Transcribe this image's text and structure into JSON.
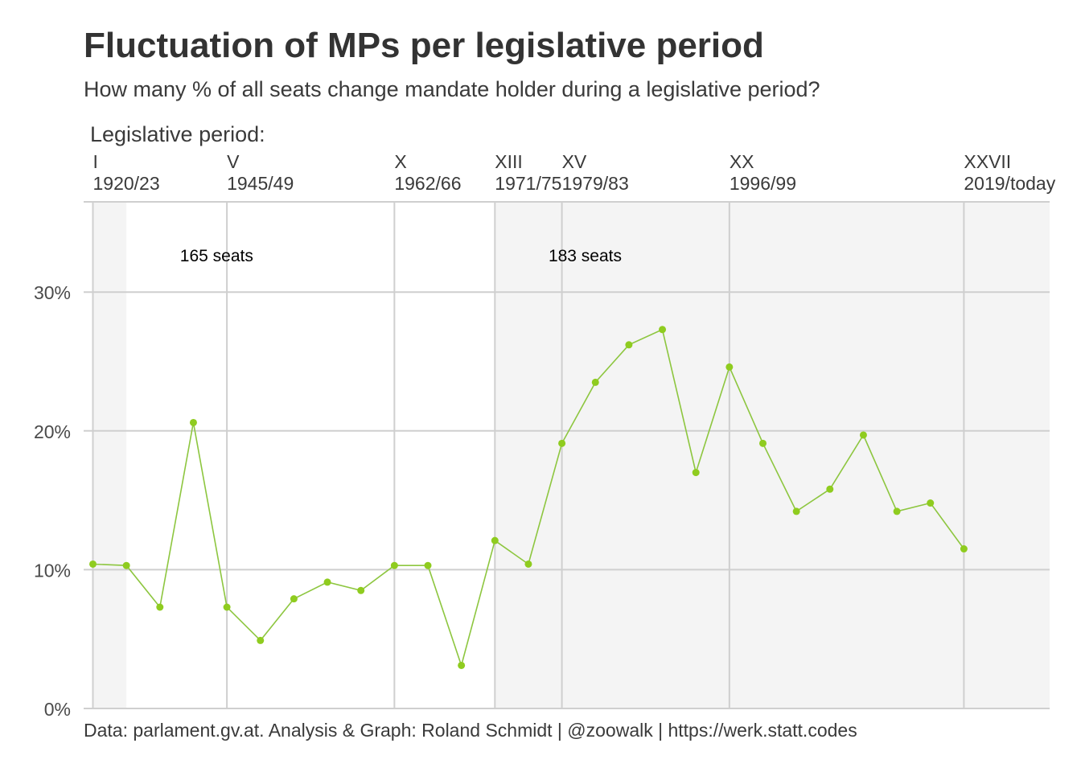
{
  "title": "Fluctuation of MPs per legislative period",
  "subtitle": "How many % of all seats change mandate holder during a legislative period?",
  "caption": "Data: parlament.gv.at. Analysis & Graph: Roland Schmidt | @zoowalk | https://werk.statt.codes",
  "top_axis_title": "Legislative period:",
  "colors": {
    "line": "#8dc63f",
    "point": "#8fcc1f",
    "band": "#f4f4f4",
    "grid": "#cfcfcf"
  },
  "chart_data": {
    "type": "line",
    "x": [
      1,
      2,
      3,
      4,
      5,
      6,
      7,
      8,
      9,
      10,
      11,
      12,
      13,
      14,
      15,
      16,
      17,
      18,
      19,
      20,
      21,
      22,
      23,
      24,
      25,
      26,
      27
    ],
    "values": [
      10.4,
      10.3,
      7.3,
      20.6,
      7.3,
      4.9,
      7.9,
      9.1,
      8.5,
      10.3,
      10.3,
      3.1,
      12.1,
      10.4,
      19.1,
      23.5,
      26.2,
      27.3,
      17.0,
      24.6,
      19.1,
      14.2,
      15.8,
      19.7,
      14.2,
      14.8,
      11.5
    ],
    "y_unit": "%",
    "ylim": [
      0,
      36.5
    ],
    "y_ticks": [
      {
        "value": 0,
        "label": "0%"
      },
      {
        "value": 10,
        "label": "10%"
      },
      {
        "value": 20,
        "label": "20%"
      },
      {
        "value": 30,
        "label": "30%"
      }
    ],
    "x_ticks": [
      {
        "period": 1,
        "numeral": "I",
        "years": "1920/23"
      },
      {
        "period": 5,
        "numeral": "V",
        "years": "1945/49"
      },
      {
        "period": 10,
        "numeral": "X",
        "years": "1962/66"
      },
      {
        "period": 13,
        "numeral": "XIII",
        "years": "1971/75"
      },
      {
        "period": 15,
        "numeral": "XV",
        "years": "1979/83"
      },
      {
        "period": 20,
        "numeral": "XX",
        "years": "1996/99"
      },
      {
        "period": 27,
        "numeral": "XXVII",
        "years": "2019/today"
      }
    ],
    "seat_bands": [
      {
        "from": 1,
        "to": 2,
        "label": ""
      },
      {
        "from": 13,
        "to": 30,
        "label": "183 seats"
      }
    ],
    "annotations": [
      {
        "text": "165 seats",
        "x": 3.6
      },
      {
        "text": "183 seats",
        "x": 14.6
      }
    ],
    "grid": true,
    "legend": "none"
  }
}
